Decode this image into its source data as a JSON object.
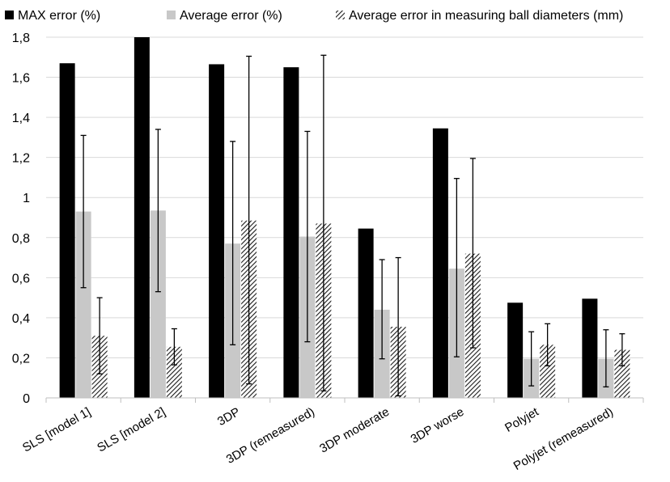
{
  "chart_data": {
    "type": "bar",
    "title": "",
    "xlabel": "",
    "ylabel": "",
    "ylim": [
      0,
      1.8
    ],
    "yticks": [
      "0",
      "0,2",
      "0,4",
      "0,6",
      "0,8",
      "1",
      "1,2",
      "1,4",
      "1,6",
      "1,8"
    ],
    "grid": true,
    "legend_position": "top",
    "categories": [
      "SLS [model 1]",
      "SLS [model 2]",
      "3DP",
      "3DP (remeasured)",
      "3DP moderate",
      "3DP worse",
      "Polyjet",
      "Polyjet (remeasured)"
    ],
    "series": [
      {
        "name": "MAX error (%)",
        "color": "#000000",
        "pattern": "solid",
        "values": [
          1.67,
          1.8,
          1.665,
          1.65,
          0.845,
          1.345,
          0.475,
          0.495
        ],
        "error_low": null,
        "error_high": null
      },
      {
        "name": "Average error (%)",
        "color": "#c8c8c8",
        "pattern": "solid",
        "values": [
          0.93,
          0.935,
          0.77,
          0.805,
          0.44,
          0.645,
          0.195,
          0.195
        ],
        "error_low": [
          0.55,
          0.53,
          0.265,
          0.28,
          0.195,
          0.205,
          0.06,
          0.055
        ],
        "error_high": [
          1.31,
          1.34,
          1.28,
          1.33,
          0.69,
          1.095,
          0.33,
          0.34
        ]
      },
      {
        "name": "Average error in measuring ball diameters (mm)",
        "color": "#000000",
        "pattern": "hatch",
        "values": [
          0.31,
          0.255,
          0.885,
          0.87,
          0.355,
          0.72,
          0.265,
          0.24
        ],
        "error_low": [
          0.12,
          0.165,
          0.07,
          0.035,
          0.01,
          0.25,
          0.16,
          0.16
        ],
        "error_high": [
          0.5,
          0.345,
          1.705,
          1.71,
          0.7,
          1.195,
          0.37,
          0.32
        ]
      }
    ]
  }
}
